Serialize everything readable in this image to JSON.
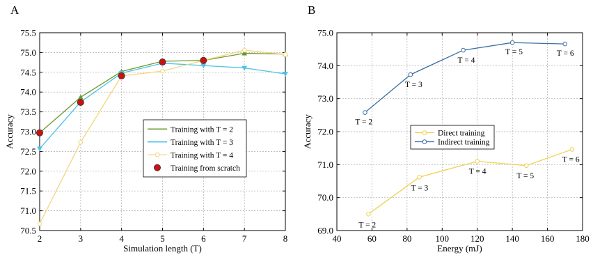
{
  "chart_data": [
    {
      "panel_label": "A",
      "type": "line",
      "xlabel": "Simulation length (T)",
      "ylabel": "Accuracy",
      "xlim": [
        2,
        8
      ],
      "ylim": [
        70.5,
        75.5
      ],
      "xticks": [
        "2",
        "3",
        "4",
        "5",
        "6",
        "7",
        "8"
      ],
      "yticks": [
        "70.5",
        "71.0",
        "71.5",
        "72.0",
        "72.5",
        "73.0",
        "73.5",
        "74.0",
        "74.5",
        "75.0",
        "75.5"
      ],
      "grid": true,
      "legend_position": "center-right",
      "series": [
        {
          "name": "Training with T = 2",
          "color": "#6b9a2c",
          "marker": "triangle",
          "x": [
            2,
            3,
            4,
            5,
            6,
            7,
            8
          ],
          "y": [
            72.97,
            73.87,
            74.52,
            74.78,
            74.8,
            74.98,
            74.96
          ]
        },
        {
          "name": "Training with T = 3",
          "color": "#4cc3e8",
          "marker": "triangle-down",
          "x": [
            2,
            3,
            4,
            5,
            6,
            7,
            8
          ],
          "y": [
            72.57,
            73.75,
            74.48,
            74.73,
            74.67,
            74.61,
            74.46
          ]
        },
        {
          "name": "Training with T = 4",
          "color": "#f5d57a",
          "marker": "circle-open",
          "x": [
            2,
            3,
            4,
            5,
            6,
            7,
            8
          ],
          "y": [
            70.67,
            72.73,
            74.41,
            74.53,
            74.8,
            75.06,
            74.95
          ]
        },
        {
          "name": "Training from scratch",
          "color": "#cc1111",
          "marker": "circle-filled",
          "x": [
            2,
            3,
            4,
            5,
            6
          ],
          "y": [
            72.97,
            73.74,
            74.41,
            74.76,
            74.8
          ]
        }
      ]
    },
    {
      "panel_label": "B",
      "type": "line",
      "xlabel": "Energy (mJ)",
      "ylabel": "Accuracy",
      "xlim": [
        40,
        180
      ],
      "ylim": [
        69.0,
        75.0
      ],
      "xticks": [
        "40",
        "60",
        "80",
        "100",
        "120",
        "140",
        "160",
        "180"
      ],
      "yticks": [
        "69.0",
        "70.0",
        "71.0",
        "72.0",
        "73.0",
        "74.0",
        "75.0"
      ],
      "grid": true,
      "legend_position": "center",
      "series": [
        {
          "name": "Direct training",
          "color": "#f0d050",
          "marker": "circle-open",
          "x": [
            58,
            87,
            120,
            148,
            174
          ],
          "y": [
            69.5,
            70.62,
            71.1,
            70.97,
            71.46
          ],
          "point_labels": [
            "T = 2",
            "T = 3",
            "T = 4",
            "T = 5",
            "T = 6"
          ]
        },
        {
          "name": "Indirect training",
          "color": "#3b6ea5",
          "marker": "circle-open",
          "x": [
            56,
            82,
            112,
            140,
            170
          ],
          "y": [
            72.58,
            73.73,
            74.47,
            74.7,
            74.66
          ],
          "point_labels": [
            "T = 2",
            "T = 3",
            "T = 4",
            "T = 5",
            "T = 6"
          ]
        }
      ]
    }
  ]
}
